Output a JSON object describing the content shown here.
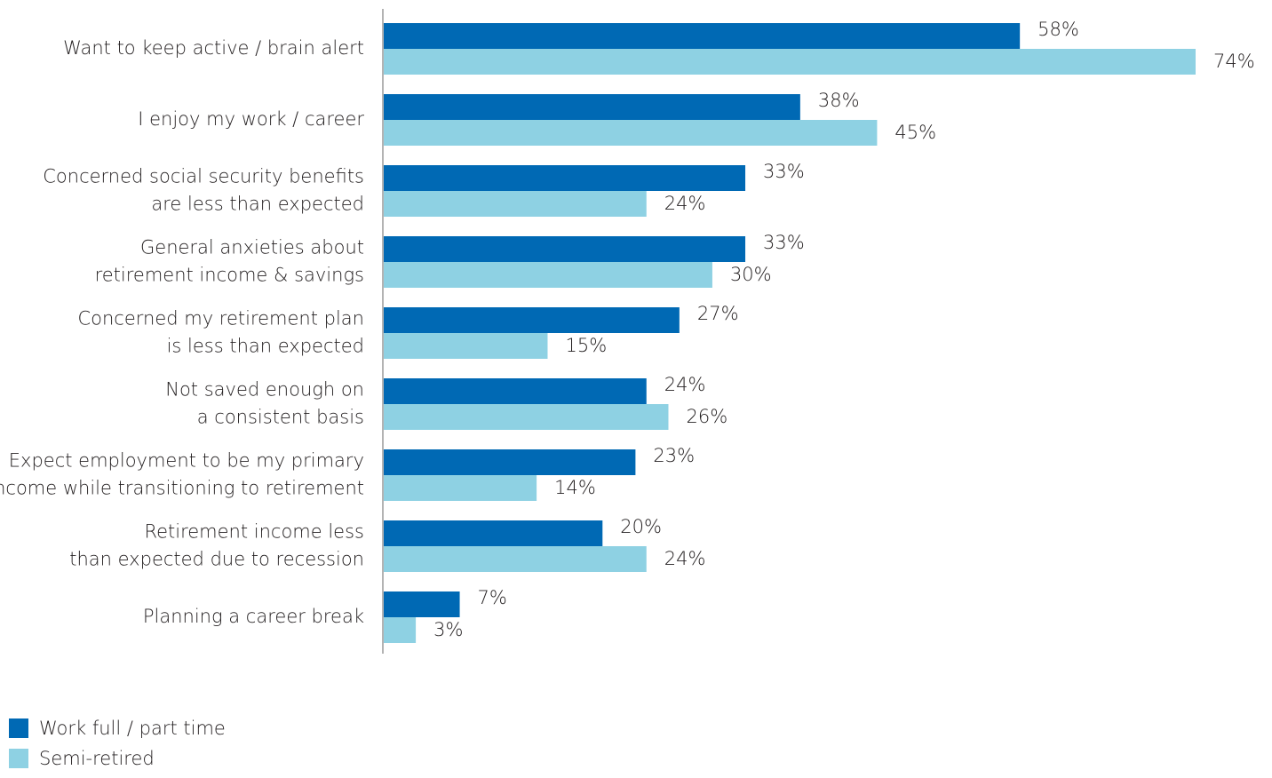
{
  "chart_data": {
    "type": "bar",
    "orientation": "horizontal",
    "categories": [
      [
        "Want to keep active / brain alert"
      ],
      [
        "I enjoy my work / career"
      ],
      [
        "Concerned social security benefits",
        "are less than expected"
      ],
      [
        "General anxieties about",
        "retirement income & savings"
      ],
      [
        "Concerned my retirement plan",
        "is less than expected"
      ],
      [
        "Not saved enough on",
        "a consistent basis"
      ],
      [
        "Expect employment to be my primary",
        "income while transitioning to retirement"
      ],
      [
        "Retirement income less",
        "than expected due to recession"
      ],
      [
        "Planning a career break"
      ]
    ],
    "series": [
      {
        "name": "Work full / part time",
        "color": "#0069b4",
        "values": [
          58,
          38,
          33,
          33,
          27,
          24,
          23,
          20,
          7
        ],
        "labels": [
          "58%",
          "38%",
          "33%",
          "33%",
          "27%",
          "24%",
          "23%",
          "20%",
          "7%"
        ]
      },
      {
        "name": "Semi-retired",
        "color": "#8ed1e3",
        "values": [
          74,
          45,
          24,
          30,
          15,
          26,
          14,
          24,
          3
        ],
        "labels": [
          "74%",
          "45%",
          "24%",
          "30%",
          "15%",
          "26%",
          "14%",
          "24%",
          "3%"
        ]
      }
    ],
    "title": "",
    "xlabel": "",
    "ylabel": "",
    "xlim": [
      0,
      74
    ],
    "grid": false,
    "legend": "bottom-left"
  }
}
